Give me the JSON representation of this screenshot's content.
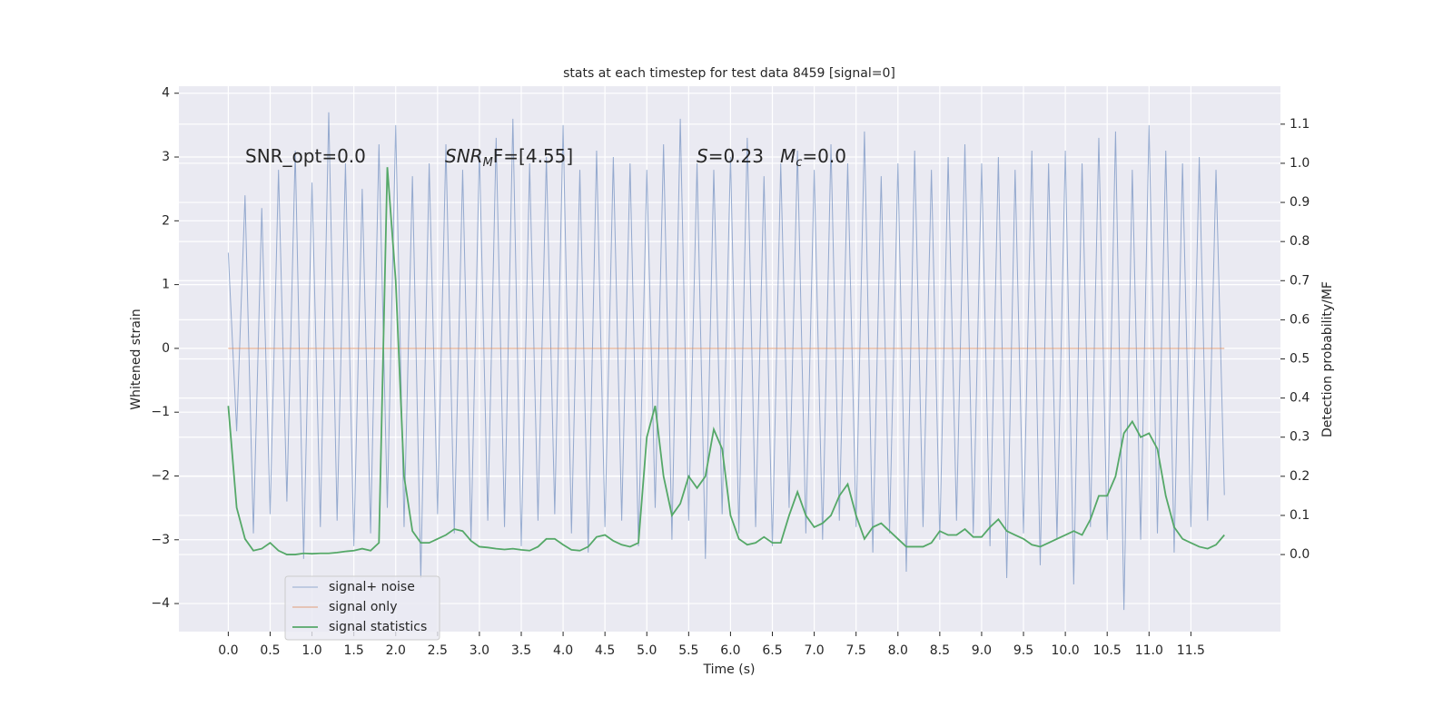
{
  "chart_data": {
    "type": "line",
    "title": "stats at each timestep for test data 8459 [signal=0]",
    "xlabel": "Time (s)",
    "ylabel": "Whitened strain",
    "y2label": "Detection probability/MF",
    "annotations": [
      [
        "SNR_opt=0.0"
      ],
      [
        "SNR",
        "M",
        "F=[4.55]"
      ],
      [
        "S",
        "=0.23"
      ],
      [
        "M",
        "c",
        "=0.0"
      ]
    ],
    "x": [
      0.0,
      0.1,
      0.2,
      0.3,
      0.4,
      0.5,
      0.6,
      0.7,
      0.8,
      0.9,
      1.0,
      1.1,
      1.2,
      1.3,
      1.4,
      1.5,
      1.6,
      1.7,
      1.8,
      1.9,
      2.0,
      2.1,
      2.2,
      2.3,
      2.4,
      2.5,
      2.6,
      2.7,
      2.8,
      2.9,
      3.0,
      3.1,
      3.2,
      3.3,
      3.4,
      3.5,
      3.6,
      3.7,
      3.8,
      3.9,
      4.0,
      4.1,
      4.2,
      4.3,
      4.4,
      4.5,
      4.6,
      4.7,
      4.8,
      4.9,
      5.0,
      5.1,
      5.2,
      5.3,
      5.4,
      5.5,
      5.6,
      5.7,
      5.8,
      5.9,
      6.0,
      6.1,
      6.2,
      6.3,
      6.4,
      6.5,
      6.6,
      6.7,
      6.8,
      6.9,
      7.0,
      7.1,
      7.2,
      7.3,
      7.4,
      7.5,
      7.6,
      7.7,
      7.8,
      7.9,
      8.0,
      8.1,
      8.2,
      8.3,
      8.4,
      8.5,
      8.6,
      8.7,
      8.8,
      8.9,
      9.0,
      9.1,
      9.2,
      9.3,
      9.4,
      9.5,
      9.6,
      9.7,
      9.8,
      9.9,
      10.0,
      10.1,
      10.2,
      10.3,
      10.4,
      10.5,
      10.6,
      10.7,
      10.8,
      10.9,
      11.0,
      11.1,
      11.2,
      11.3,
      11.4,
      11.5,
      11.6,
      11.7,
      11.8,
      11.9
    ],
    "series": [
      {
        "name": "signal+ noise",
        "color": "#4c72b0",
        "axis": "y",
        "values": [
          1.5,
          -1.3,
          2.4,
          -2.9,
          2.2,
          -2.6,
          2.8,
          -2.4,
          3.1,
          -3.3,
          2.6,
          -2.8,
          3.7,
          -2.7,
          2.9,
          -3.1,
          2.5,
          -2.9,
          3.2,
          -2.5,
          3.5,
          -2.8,
          2.7,
          -3.6,
          2.9,
          -2.6,
          3.2,
          -2.9,
          2.8,
          -3.0,
          3.1,
          -2.7,
          3.3,
          -2.8,
          3.6,
          -3.1,
          2.9,
          -2.7,
          3.0,
          -2.6,
          3.5,
          -2.9,
          2.8,
          -3.2,
          3.1,
          -2.8,
          3.0,
          -2.7,
          2.9,
          -3.1,
          2.8,
          -2.5,
          3.2,
          -3.0,
          3.6,
          -2.7,
          2.9,
          -3.3,
          2.8,
          -2.6,
          3.0,
          -2.9,
          3.3,
          -2.8,
          2.7,
          -3.1,
          2.9,
          -2.5,
          3.1,
          -2.9,
          2.8,
          -3.0,
          3.2,
          -2.7,
          2.9,
          -2.8,
          3.4,
          -3.2,
          2.7,
          -2.9,
          2.9,
          -3.5,
          3.1,
          -2.8,
          2.8,
          -3.0,
          3.0,
          -2.7,
          3.2,
          -2.9,
          2.9,
          -3.1,
          3.0,
          -3.6,
          2.8,
          -2.9,
          3.1,
          -3.4,
          2.9,
          -3.0,
          3.1,
          -3.7,
          2.9,
          -2.8,
          3.3,
          -3.0,
          3.4,
          -4.1,
          2.8,
          -3.0,
          3.5,
          -2.9,
          3.1,
          -3.2,
          2.9,
          -2.8,
          3.0,
          -2.7,
          2.8,
          -2.3
        ]
      },
      {
        "name": "signal only",
        "color": "#dd8452",
        "axis": "y",
        "values": [
          0,
          0,
          0,
          0,
          0,
          0,
          0,
          0,
          0,
          0,
          0,
          0,
          0,
          0,
          0,
          0,
          0,
          0,
          0,
          0,
          0,
          0,
          0,
          0,
          0,
          0,
          0,
          0,
          0,
          0,
          0,
          0,
          0,
          0,
          0,
          0,
          0,
          0,
          0,
          0,
          0,
          0,
          0,
          0,
          0,
          0,
          0,
          0,
          0,
          0,
          0,
          0,
          0,
          0,
          0,
          0,
          0,
          0,
          0,
          0,
          0,
          0,
          0,
          0,
          0,
          0,
          0,
          0,
          0,
          0,
          0,
          0,
          0,
          0,
          0,
          0,
          0,
          0,
          0,
          0,
          0,
          0,
          0,
          0,
          0,
          0,
          0,
          0,
          0,
          0,
          0,
          0,
          0,
          0,
          0,
          0,
          0,
          0,
          0,
          0,
          0,
          0,
          0,
          0,
          0,
          0,
          0,
          0,
          0,
          0,
          0,
          0,
          0,
          0,
          0,
          0,
          0,
          0,
          0,
          0
        ]
      },
      {
        "name": "signal statistics",
        "color": "#55a868",
        "axis": "y2",
        "values": [
          0.38,
          0.12,
          0.04,
          0.01,
          0.015,
          0.03,
          0.01,
          0.0,
          0.0,
          0.003,
          0.002,
          0.003,
          0.003,
          0.005,
          0.008,
          0.01,
          0.015,
          0.01,
          0.03,
          0.99,
          0.7,
          0.2,
          0.06,
          0.03,
          0.03,
          0.04,
          0.05,
          0.065,
          0.06,
          0.035,
          0.02,
          0.018,
          0.015,
          0.013,
          0.015,
          0.012,
          0.01,
          0.02,
          0.04,
          0.04,
          0.025,
          0.012,
          0.01,
          0.02,
          0.045,
          0.05,
          0.035,
          0.025,
          0.02,
          0.03,
          0.3,
          0.38,
          0.2,
          0.1,
          0.13,
          0.2,
          0.17,
          0.2,
          0.32,
          0.27,
          0.1,
          0.04,
          0.025,
          0.03,
          0.045,
          0.03,
          0.03,
          0.1,
          0.16,
          0.1,
          0.07,
          0.08,
          0.1,
          0.15,
          0.18,
          0.1,
          0.04,
          0.07,
          0.08,
          0.06,
          0.04,
          0.02,
          0.02,
          0.02,
          0.03,
          0.06,
          0.05,
          0.05,
          0.065,
          0.045,
          0.045,
          0.07,
          0.09,
          0.06,
          0.05,
          0.04,
          0.025,
          0.02,
          0.03,
          0.04,
          0.05,
          0.06,
          0.05,
          0.09,
          0.15,
          0.15,
          0.2,
          0.31,
          0.34,
          0.3,
          0.31,
          0.27,
          0.15,
          0.07,
          0.04,
          0.03,
          0.02,
          0.015,
          0.025,
          0.05
        ]
      }
    ],
    "xlim": [
      -0.59,
      12.57
    ],
    "xticks": [
      {
        "value": 0,
        "label": "0.0"
      },
      0.5,
      {
        "value": 1,
        "label": "1.0"
      },
      1.5,
      {
        "value": 2,
        "label": "2.0"
      },
      2.5,
      {
        "value": 3,
        "label": "3.0"
      },
      3.5,
      {
        "value": 4,
        "label": "4.0"
      },
      4.5,
      {
        "value": 5,
        "label": "5.0"
      },
      5.5,
      {
        "value": 6,
        "label": "6.0"
      },
      6.5,
      {
        "value": 7,
        "label": "7.0"
      },
      7.5,
      {
        "value": 8,
        "label": "8.0"
      },
      8.5,
      {
        "value": 9,
        "label": "9.0"
      },
      9.5,
      {
        "value": 10,
        "label": "10.0"
      },
      10.5,
      {
        "value": 11,
        "label": "11.0"
      },
      11.5
    ],
    "ylim": [
      -4.44,
      4.11
    ],
    "yticks": [
      {
        "value": -4,
        "label": "−4"
      },
      {
        "value": -3,
        "label": "−3"
      },
      {
        "value": -2,
        "label": "−2"
      },
      {
        "value": -1,
        "label": "−1"
      },
      0,
      1,
      2,
      3,
      4
    ],
    "y2lim": [
      -0.197,
      1.197
    ],
    "y2ticks": [
      {
        "value": 0,
        "label": "0.0"
      },
      0.1,
      0.2,
      0.3,
      0.4,
      0.5,
      0.6,
      0.7,
      0.8,
      0.9,
      {
        "value": 1,
        "label": "1.0"
      },
      1.1
    ],
    "grid": true,
    "legend": "lower left",
    "background": "#eaeaf2"
  }
}
